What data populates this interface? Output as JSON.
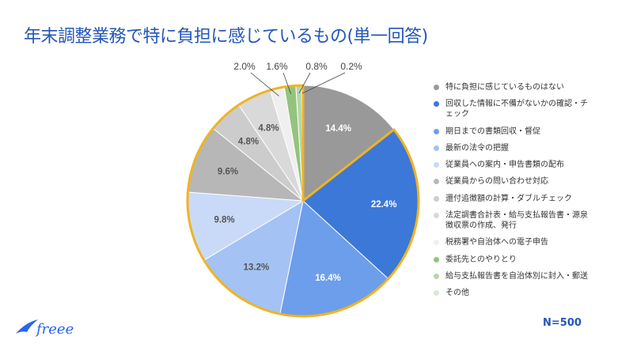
{
  "title": "年末調整業務で特に負担に感じているもの(単一回答)",
  "note": "N=500",
  "logo_text": "freee",
  "chart_data": {
    "type": "pie",
    "title": "年末調整業務で特に負担に感じているもの(単一回答)",
    "start": "top, clockwise",
    "legend_position": "right",
    "highlight_color": "#f0b323",
    "highlight": "all slices except 特に負担に感じているものはない",
    "slices": [
      {
        "name": "特に負担に感じているものはない",
        "value": 14.4,
        "label": "14.4%",
        "color": "#999999"
      },
      {
        "name": "回収した情報に不備がないかの確認・チェック",
        "value": 22.4,
        "label": "22.4%",
        "color": "#3c78d8"
      },
      {
        "name": "期日までの書類回収・督促",
        "value": 16.4,
        "label": "16.4%",
        "color": "#6d9eeb"
      },
      {
        "name": "最新の法令の把握",
        "value": 13.2,
        "label": "13.2%",
        "color": "#a4c2f4"
      },
      {
        "name": "従業員への案内・申告書類の配布",
        "value": 9.8,
        "label": "9.8%",
        "color": "#c9daf8"
      },
      {
        "name": "従業員からの問い合わせ対応",
        "value": 9.6,
        "label": "9.6%",
        "color": "#b7b7b7"
      },
      {
        "name": "還付追徴額の計算・ダブルチェック",
        "value": 4.8,
        "label": "4.8%",
        "color": "#cccccc"
      },
      {
        "name": "法定調書合計表・給与支払報告書・源泉徴収票の作成、発行",
        "value": 4.8,
        "label": "4.8%",
        "color": "#d9d9d9"
      },
      {
        "name": "税務署や自治体への電子申告",
        "value": 2.0,
        "label": "2.0%",
        "color": "#efefef"
      },
      {
        "name": "委託先とのやりとり",
        "value": 1.6,
        "label": "1.6%",
        "color": "#93c47d"
      },
      {
        "name": "給与支払報告書を自治体別に封入・郵送",
        "value": 0.8,
        "label": "0.8%",
        "color": "#b6d7a8"
      },
      {
        "name": "その他",
        "value": 0.2,
        "label": "0.2%",
        "color": "#d9ead3"
      }
    ]
  }
}
